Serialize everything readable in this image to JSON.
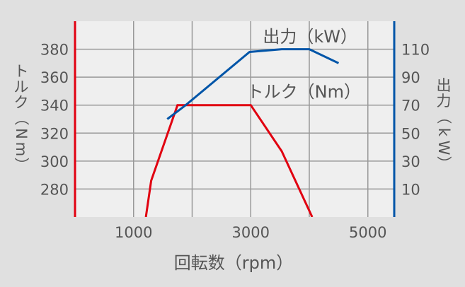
{
  "chart_data": {
    "type": "line",
    "title": "",
    "xlabel": "回転数（rpm）",
    "ylabel_left": "トルク（Nm）",
    "ylabel_right": "出力（kW）",
    "x_range": [
      0,
      5450
    ],
    "x_ticks": [
      1000,
      3000,
      5000
    ],
    "x_gridlines": [
      1000,
      2000,
      3000,
      4000,
      5000
    ],
    "y_left_range": [
      260,
      400
    ],
    "y_left_ticks": [
      380,
      360,
      340,
      320,
      300,
      280
    ],
    "y_right_range": [
      -10,
      130
    ],
    "y_right_ticks": [
      110,
      90,
      70,
      50,
      30,
      10
    ],
    "grid": true,
    "legend_position": "inline",
    "series": [
      {
        "name": "トルク（Nm）",
        "axis": "left",
        "color": "#e10010",
        "x": [
          1210,
          1300,
          1750,
          3000,
          3530,
          4050
        ],
        "values": [
          260,
          286,
          340,
          340,
          307,
          260
        ]
      },
      {
        "name": "出力（kW）",
        "axis": "right",
        "color": "#0055a8",
        "x": [
          1575,
          1890,
          2980,
          3530,
          4000,
          4500
        ],
        "values": [
          60,
          70,
          108,
          110,
          110,
          100
        ]
      }
    ]
  },
  "colors": {
    "background": "#e0e0e0",
    "plot_background": "#efefef",
    "grid": "#999999",
    "left_axis": "#e10010",
    "right_axis": "#0055a8",
    "text": "#555555"
  },
  "labels": {
    "x_title": "回転数（rpm）",
    "left_title_chars": [
      "ト",
      "ル",
      "ク",
      "（",
      "N",
      "m",
      "）"
    ],
    "right_title_chars": [
      "出",
      "力",
      "（",
      "k",
      "W",
      "）"
    ],
    "power_series_label": "出力（kW）",
    "torque_series_label": "トルク（Nm）"
  }
}
